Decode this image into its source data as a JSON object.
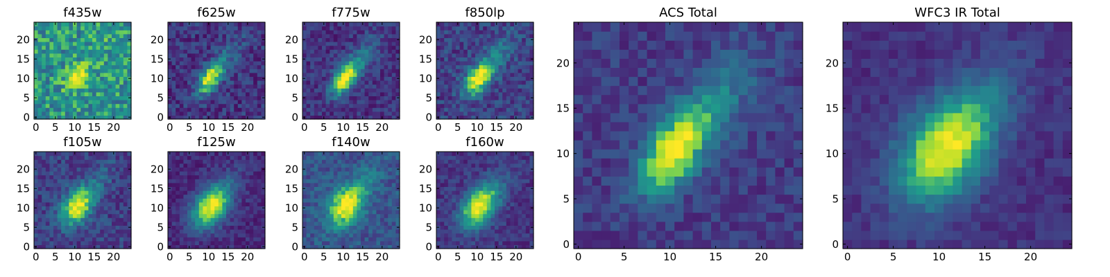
{
  "chart_data": [
    {
      "type": "heatmap",
      "title": "f435w",
      "xlim": [
        0,
        24
      ],
      "ylim": [
        0,
        24
      ],
      "xticks": [
        0,
        5,
        10,
        15,
        20
      ],
      "yticks": [
        0,
        5,
        10,
        15,
        20
      ],
      "source": {
        "center": [
          10.3,
          10
        ],
        "sx": 2.2,
        "sy": 1.6,
        "angle": 55,
        "peak": 0.5,
        "background": 0.55,
        "noise": 0.2,
        "tail": 0.12,
        "seed": 11
      }
    },
    {
      "type": "heatmap",
      "title": "f625w",
      "xlim": [
        0,
        24
      ],
      "ylim": [
        0,
        24
      ],
      "xticks": [
        0,
        5,
        10,
        15,
        20
      ],
      "yticks": [
        0,
        5,
        10,
        15,
        20
      ],
      "source": {
        "center": [
          10.3,
          10
        ],
        "sx": 3.2,
        "sy": 1.7,
        "angle": 55,
        "peak": 0.75,
        "background": 0.18,
        "noise": 0.14,
        "tail": 0.18,
        "seed": 23
      }
    },
    {
      "type": "heatmap",
      "title": "f775w",
      "xlim": [
        0,
        24
      ],
      "ylim": [
        0,
        24
      ],
      "xticks": [
        0,
        5,
        10,
        15,
        20
      ],
      "yticks": [
        0,
        5,
        10,
        15,
        20
      ],
      "source": {
        "center": [
          10.3,
          10
        ],
        "sx": 3.4,
        "sy": 1.8,
        "angle": 55,
        "peak": 0.8,
        "background": 0.17,
        "noise": 0.12,
        "tail": 0.22,
        "seed": 37
      }
    },
    {
      "type": "heatmap",
      "title": "f850lp",
      "xlim": [
        0,
        24
      ],
      "ylim": [
        0,
        24
      ],
      "xticks": [
        0,
        5,
        10,
        15,
        20
      ],
      "yticks": [
        0,
        5,
        10,
        15,
        20
      ],
      "source": {
        "center": [
          10.3,
          10
        ],
        "sx": 3.4,
        "sy": 1.9,
        "angle": 55,
        "peak": 0.78,
        "background": 0.22,
        "noise": 0.14,
        "tail": 0.22,
        "seed": 41
      }
    },
    {
      "type": "heatmap",
      "title": "f105w",
      "xlim": [
        0,
        24
      ],
      "ylim": [
        0,
        24
      ],
      "xticks": [
        0,
        5,
        10,
        15,
        20
      ],
      "yticks": [
        0,
        5,
        10,
        15,
        20
      ],
      "source": {
        "center": [
          10.5,
          10.3
        ],
        "sx": 3.6,
        "sy": 2.4,
        "angle": 55,
        "peak": 0.75,
        "background": 0.22,
        "noise": 0.13,
        "tail": 0.15,
        "seed": 53
      }
    },
    {
      "type": "heatmap",
      "title": "f125w",
      "xlim": [
        0,
        24
      ],
      "ylim": [
        0,
        24
      ],
      "xticks": [
        0,
        5,
        10,
        15,
        20
      ],
      "yticks": [
        0,
        5,
        10,
        15,
        20
      ],
      "source": {
        "center": [
          10.5,
          10.3
        ],
        "sx": 4.2,
        "sy": 2.8,
        "angle": 55,
        "peak": 0.82,
        "background": 0.14,
        "noise": 0.09,
        "tail": 0.12,
        "seed": 67
      }
    },
    {
      "type": "heatmap",
      "title": "f140w",
      "xlim": [
        0,
        24
      ],
      "ylim": [
        0,
        24
      ],
      "xticks": [
        0,
        5,
        10,
        15,
        20
      ],
      "yticks": [
        0,
        5,
        10,
        15,
        20
      ],
      "source": {
        "center": [
          10.6,
          10.5
        ],
        "sx": 4.0,
        "sy": 2.7,
        "angle": 55,
        "peak": 0.7,
        "background": 0.3,
        "noise": 0.12,
        "tail": 0.15,
        "seed": 71
      }
    },
    {
      "type": "heatmap",
      "title": "f160w",
      "xlim": [
        0,
        24
      ],
      "ylim": [
        0,
        24
      ],
      "xticks": [
        0,
        5,
        10,
        15,
        20
      ],
      "yticks": [
        0,
        5,
        10,
        15,
        20
      ],
      "source": {
        "center": [
          10.5,
          10.3
        ],
        "sx": 4.2,
        "sy": 2.7,
        "angle": 55,
        "peak": 0.8,
        "background": 0.18,
        "noise": 0.1,
        "tail": 0.12,
        "seed": 83
      }
    },
    {
      "type": "heatmap",
      "title": "ACS Total",
      "xlim": [
        0,
        24
      ],
      "ylim": [
        0,
        24
      ],
      "xticks": [
        0,
        5,
        10,
        15,
        20
      ],
      "yticks": [
        0,
        5,
        10,
        15,
        20
      ],
      "source": {
        "center": [
          10.3,
          10.2
        ],
        "sx": 3.6,
        "sy": 1.9,
        "angle": 55,
        "peak": 0.78,
        "background": 0.2,
        "noise": 0.1,
        "tail": 0.26,
        "seed": 97
      }
    },
    {
      "type": "heatmap",
      "title": "WFC3 IR Total",
      "xlim": [
        0,
        24
      ],
      "ylim": [
        0,
        24
      ],
      "xticks": [
        0,
        5,
        10,
        15,
        20
      ],
      "yticks": [
        0,
        5,
        10,
        15,
        20
      ],
      "source": {
        "center": [
          10.6,
          10.4
        ],
        "sx": 4.6,
        "sy": 3.0,
        "angle": 55,
        "peak": 0.8,
        "background": 0.16,
        "noise": 0.07,
        "tail": 0.14,
        "seed": 103
      }
    }
  ],
  "colormap": [
    "#440154",
    "#482777",
    "#3f4a8a",
    "#31678e",
    "#26838f",
    "#1f9d8a",
    "#6cce5a",
    "#b6de2b",
    "#fee825"
  ]
}
